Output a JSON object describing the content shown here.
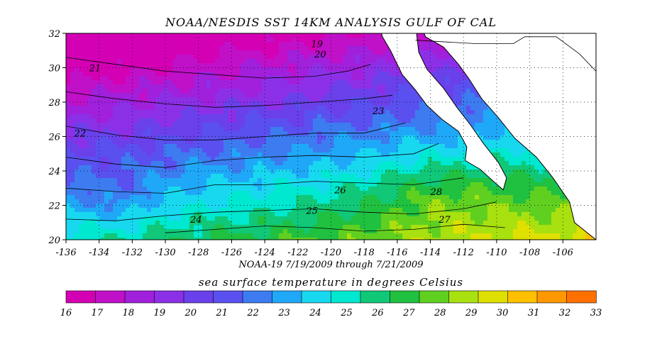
{
  "title": "NOAA/NESDIS SST 14KM ANALYSIS GULF OF CAL",
  "subtitle": "NOAA-19  7/19/2009 through 7/21/2009",
  "colorbar_title": "sea surface temperature in degrees Celsius",
  "map": {
    "lon_range": [
      -136,
      -104
    ],
    "lat_range": [
      20,
      32
    ],
    "lon_ticks": [
      "-136",
      "-134",
      "-132",
      "-130",
      "-128",
      "-126",
      "-124",
      "-122",
      "-120",
      "-118",
      "-116",
      "-114",
      "-112",
      "-110",
      "-108",
      "-106"
    ],
    "lat_ticks": [
      "20",
      "22",
      "24",
      "26",
      "28",
      "30",
      "32"
    ],
    "grid": "dotted",
    "contour_labels": [
      "19",
      "20",
      "21",
      "22",
      "23",
      "24",
      "25",
      "26",
      "27",
      "28"
    ]
  },
  "colorbar": {
    "labels": [
      "16",
      "17",
      "18",
      "19",
      "20",
      "21",
      "22",
      "23",
      "24",
      "25",
      "26",
      "27",
      "28",
      "29",
      "30",
      "31",
      "32",
      "33"
    ],
    "colors": [
      "#d400b4",
      "#c010c8",
      "#a020dc",
      "#8c30e8",
      "#6a40ea",
      "#5a50f0",
      "#3c7cf0",
      "#20a8f8",
      "#18d8f0",
      "#00e8d0",
      "#10c878",
      "#20c040",
      "#60d020",
      "#a8e010",
      "#e0e000",
      "#ffc000",
      "#ff9800",
      "#ff7000"
    ]
  },
  "colors": {
    "land": "#ffffff",
    "background": "#ffffff",
    "text": "#000000"
  }
}
